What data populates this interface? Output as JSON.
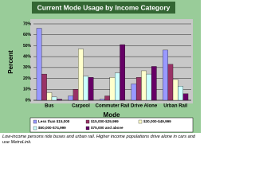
{
  "chart_data": {
    "type": "bar",
    "title": "Current Mode Usage by Income Category",
    "x_label": "Mode",
    "y_label": "Percent",
    "categories": [
      "Bus",
      "Carpool",
      "Commuter Rail",
      "Drive Alone",
      "Urban Rail"
    ],
    "series": [
      {
        "name": "Less than $15,000",
        "color": "#9999ff",
        "values": [
          66,
          4,
          1,
          15,
          46
        ]
      },
      {
        "name": "$15,000-$29,999",
        "color": "#993366",
        "values": [
          24,
          10,
          4,
          21,
          33
        ]
      },
      {
        "name": "$30,000-$49,999",
        "color": "#ffffcc",
        "values": [
          7,
          47,
          21,
          27,
          19
        ]
      },
      {
        "name": "$50,000-$74,999",
        "color": "#ccffff",
        "values": [
          3,
          22,
          25,
          24,
          13
        ]
      },
      {
        "name": "$75,000 and above",
        "color": "#660066",
        "values": [
          1,
          21,
          51,
          31,
          6
        ]
      }
    ],
    "ylim": [
      0,
      70
    ],
    "yticks": [
      {
        "value": 0,
        "label": "0%"
      },
      {
        "value": 10,
        "label": "10%"
      },
      {
        "value": 20,
        "label": "20%"
      },
      {
        "value": 30,
        "label": "30%"
      },
      {
        "value": 40,
        "label": "40%"
      },
      {
        "value": 50,
        "label": "50%"
      },
      {
        "value": 60,
        "label": "60%"
      },
      {
        "value": 70,
        "label": "70%"
      }
    ],
    "grid": true,
    "caption": "Low-income persons ride buses and urban rail. Higher income populations drive alone in cars and use MetroLink."
  }
}
